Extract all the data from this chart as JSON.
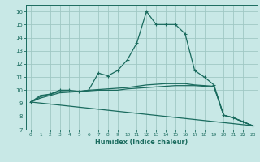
{
  "xlabel": "Humidex (Indice chaleur)",
  "xlim": [
    -0.5,
    23.5
  ],
  "ylim": [
    7,
    16.5
  ],
  "yticks": [
    7,
    8,
    9,
    10,
    11,
    12,
    13,
    14,
    15,
    16
  ],
  "xticks": [
    0,
    1,
    2,
    3,
    4,
    5,
    6,
    7,
    8,
    9,
    10,
    11,
    12,
    13,
    14,
    15,
    16,
    17,
    18,
    19,
    20,
    21,
    22,
    23
  ],
  "background_color": "#c8e8e6",
  "grid_color": "#a0c8c4",
  "line_color": "#1a6b5e",
  "line_main": {
    "x": [
      0,
      1,
      2,
      3,
      4,
      5,
      6,
      7,
      8,
      9,
      10,
      11,
      12,
      13,
      14,
      15,
      16,
      17,
      18,
      19,
      20,
      21,
      22,
      23
    ],
    "y": [
      9.1,
      9.6,
      9.7,
      10.0,
      10.0,
      9.9,
      10.0,
      11.3,
      11.1,
      11.5,
      12.3,
      13.6,
      16.0,
      15.0,
      15.0,
      15.0,
      14.3,
      11.5,
      11.0,
      10.4,
      8.1,
      7.9,
      7.6,
      7.3
    ]
  },
  "line_flat1": {
    "x": [
      0,
      1,
      2,
      3,
      4,
      5,
      6,
      7,
      8,
      9,
      10,
      11,
      12,
      13,
      14,
      15,
      16,
      17,
      18,
      19,
      20,
      21,
      22,
      23
    ],
    "y": [
      9.1,
      9.5,
      9.7,
      9.9,
      9.9,
      9.9,
      10.0,
      10.05,
      10.1,
      10.15,
      10.2,
      10.3,
      10.4,
      10.45,
      10.5,
      10.5,
      10.5,
      10.4,
      10.35,
      10.3,
      8.1,
      7.9,
      7.6,
      7.3
    ]
  },
  "line_flat2": {
    "x": [
      0,
      1,
      2,
      3,
      4,
      5,
      6,
      7,
      8,
      9,
      10,
      11,
      12,
      13,
      14,
      15,
      16,
      17,
      18,
      19,
      20,
      21,
      22,
      23
    ],
    "y": [
      9.1,
      9.4,
      9.6,
      9.8,
      9.85,
      9.9,
      9.95,
      10.0,
      10.0,
      10.0,
      10.1,
      10.15,
      10.2,
      10.25,
      10.3,
      10.35,
      10.35,
      10.35,
      10.3,
      10.25,
      8.1,
      7.9,
      7.6,
      7.3
    ]
  },
  "line_diag": {
    "x": [
      0,
      23
    ],
    "y": [
      9.1,
      7.3
    ]
  }
}
